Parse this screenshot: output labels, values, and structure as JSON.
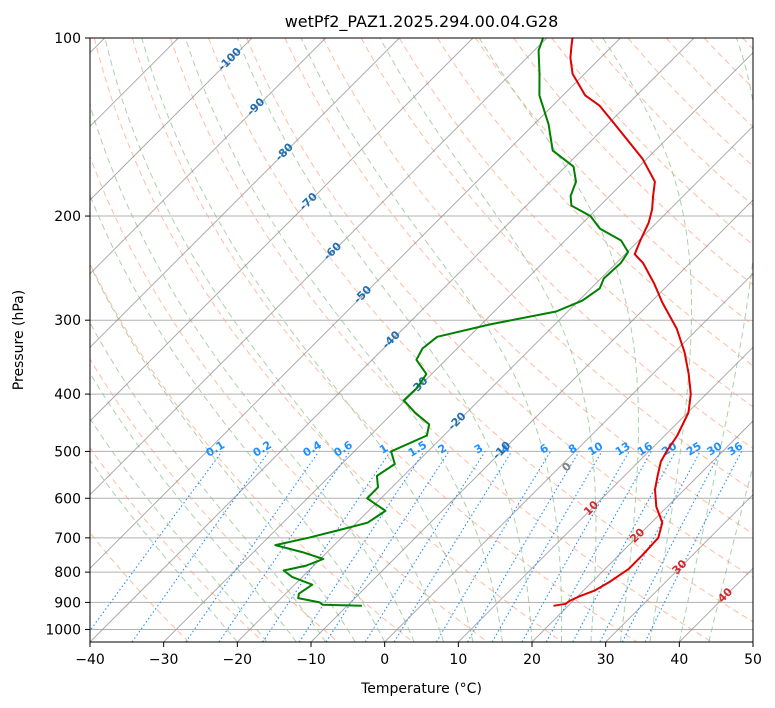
{
  "chart_data": {
    "type": "line",
    "title": "wetPf2_PAZ1.2025.294.00.04.G28",
    "xlabel": "Temperature (°C)",
    "ylabel": "Pressure (hPa)",
    "xlim": [
      -40,
      50
    ],
    "ylim": [
      1050,
      100
    ],
    "y_scale": "log",
    "grid": true,
    "x_ticks": [
      "−40",
      "−30",
      "−20",
      "−10",
      "0",
      "10",
      "20",
      "30",
      "40",
      "50"
    ],
    "x_tick_values": [
      -40,
      -30,
      -20,
      -10,
      0,
      10,
      20,
      30,
      40,
      50
    ],
    "y_ticks": [
      "100",
      "200",
      "300",
      "400",
      "500",
      "600",
      "700",
      "800",
      "900",
      "1000"
    ],
    "y_tick_values": [
      100,
      200,
      300,
      400,
      500,
      600,
      700,
      800,
      900,
      1000
    ],
    "colors": {
      "temperature": "#e00000",
      "dewpoint": "#008000",
      "isotherm": "#888888",
      "dry_adiabat": "#ffa07a",
      "moist_adiabat": "#90c090",
      "mixing_ratio": "#1e90ff",
      "isotherm_label": "#1f6fb0",
      "dry_adiabat_label": "#d62728",
      "zero_label": "#808080"
    },
    "series": [
      {
        "key": "temperature",
        "pressure": [
          912,
          905,
          895,
          880,
          860,
          830,
          790,
          750,
          700,
          660,
          620,
          580,
          550,
          520,
          500,
          470,
          430,
          400,
          370,
          340,
          310,
          280,
          260,
          240,
          232,
          220,
          205,
          195,
          185,
          175,
          160,
          140,
          130,
          125,
          115,
          108,
          103,
          100
        ],
        "temperature": [
          18,
          19.4,
          19.5,
          20.2,
          21.5,
          22.4,
          23.2,
          23.2,
          23.0,
          21.5,
          18.5,
          16.0,
          14.5,
          13.0,
          12.4,
          11.7,
          10.1,
          7.9,
          4.9,
          1.4,
          -2.9,
          -8.4,
          -12.1,
          -16.4,
          -18.7,
          -19.8,
          -21.1,
          -22.4,
          -24.1,
          -25.8,
          -30.6,
          -39.0,
          -43.7,
          -47.0,
          -51.6,
          -54.1,
          -55.6,
          -56.5
        ]
      },
      {
        "key": "dewpoint",
        "pressure": [
          912,
          908,
          900,
          885,
          870,
          840,
          815,
          795,
          780,
          760,
          740,
          720,
          700,
          680,
          660,
          630,
          600,
          575,
          550,
          525,
          500,
          470,
          450,
          430,
          410,
          390,
          370,
          350,
          335,
          320,
          305,
          290,
          278,
          265,
          255,
          240,
          230,
          220,
          210,
          200,
          192,
          185,
          175,
          165,
          155,
          140,
          125,
          115,
          105,
          100
        ],
        "dewpoint": [
          -8,
          -13.5,
          -14.2,
          -17.7,
          -18.2,
          -17.6,
          -21.4,
          -23.4,
          -21.0,
          -19.6,
          -23.4,
          -28.0,
          -24.5,
          -21.5,
          -18.5,
          -17.7,
          -21.9,
          -21.9,
          -23.6,
          -22.8,
          -25.0,
          -22.3,
          -23.5,
          -27.0,
          -30.2,
          -30.1,
          -30.7,
          -34.0,
          -34.7,
          -34.3,
          -28.8,
          -21.6,
          -19.5,
          -18.8,
          -19.6,
          -19.4,
          -19.9,
          -22.4,
          -26.9,
          -29.9,
          -33.9,
          -35.3,
          -36.5,
          -38.9,
          -43.9,
          -48.0,
          -53.2,
          -56.1,
          -59.4,
          -60.5
        ]
      }
    ],
    "isotherm_labels": [
      "-100",
      "-90",
      "-80",
      "-70",
      "-60",
      "-50",
      "-40",
      "-30",
      "-20",
      "-10"
    ],
    "isotherm_label_values": [
      -100,
      -90,
      -80,
      -70,
      -60,
      -50,
      -40,
      -30,
      -20,
      -10
    ],
    "zero_label": "0",
    "dry_adiabat_labels": [
      "10",
      "20",
      "30",
      "40"
    ],
    "dry_adiabat_label_values": [
      10,
      20,
      30,
      40
    ],
    "mixing_ratio_labels": [
      "0.1",
      "0.2",
      "0.4",
      "0.6",
      "1",
      "1.5",
      "2",
      "3",
      "4",
      "6",
      "8",
      "10",
      "13",
      "16",
      "20",
      "25",
      "30",
      "36"
    ],
    "mixing_ratio_values": [
      0.1,
      0.2,
      0.4,
      0.6,
      1,
      1.5,
      2,
      3,
      4,
      6,
      8,
      10,
      13,
      16,
      20,
      25,
      30,
      36
    ]
  }
}
